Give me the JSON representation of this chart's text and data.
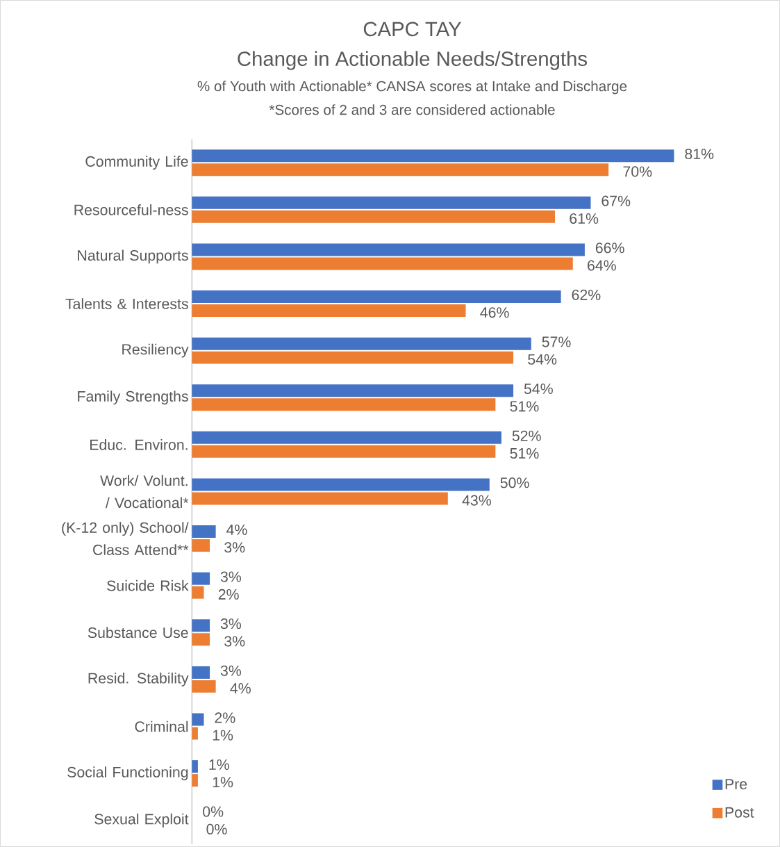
{
  "chart_data": {
    "type": "bar",
    "orientation": "horizontal",
    "title": "CAPC TAY",
    "subtitle": "Change in Actionable Needs/Strengths",
    "annotations": [
      "% of Youth with Actionable* CANSA scores at Intake and Discharge",
      "*Scores of 2 and 3 are considered actionable"
    ],
    "categories": [
      "Community Life",
      "Resourceful-ness",
      "Natural Supports",
      "Talents & Interests",
      "Resiliency",
      "Family Strengths",
      "Educ. Environ.",
      "Work/ Volunt. / Vocational*",
      "(K-12 only) School/ Class Attend**",
      "Suicide Risk",
      "Substance Use",
      "Resid. Stability",
      "Criminal",
      "Social Functioning",
      "Sexual Exploit"
    ],
    "series": [
      {
        "name": "Pre",
        "color": "#4472c4",
        "values": [
          81,
          67,
          66,
          62,
          57,
          54,
          52,
          50,
          4,
          3,
          3,
          3,
          2,
          1,
          0
        ],
        "value_labels": [
          "81%",
          "67%",
          "66%",
          "62%",
          "57%",
          "54%",
          "52%",
          "50%",
          "4%",
          "3%",
          "3%",
          "3%",
          "2%",
          "1%",
          "0%"
        ]
      },
      {
        "name": "Post",
        "color": "#ed7d31",
        "values": [
          70,
          61,
          64,
          46,
          54,
          51,
          51,
          43,
          3,
          2,
          3,
          4,
          1,
          1,
          0
        ],
        "value_labels": [
          "70%",
          "61%",
          "64%",
          "46%",
          "54%",
          "51%",
          "51%",
          "43%",
          "3%",
          "2%",
          "3%",
          "4%",
          "1%",
          "1%",
          "0%"
        ]
      }
    ],
    "legend": "bottom right"
  }
}
